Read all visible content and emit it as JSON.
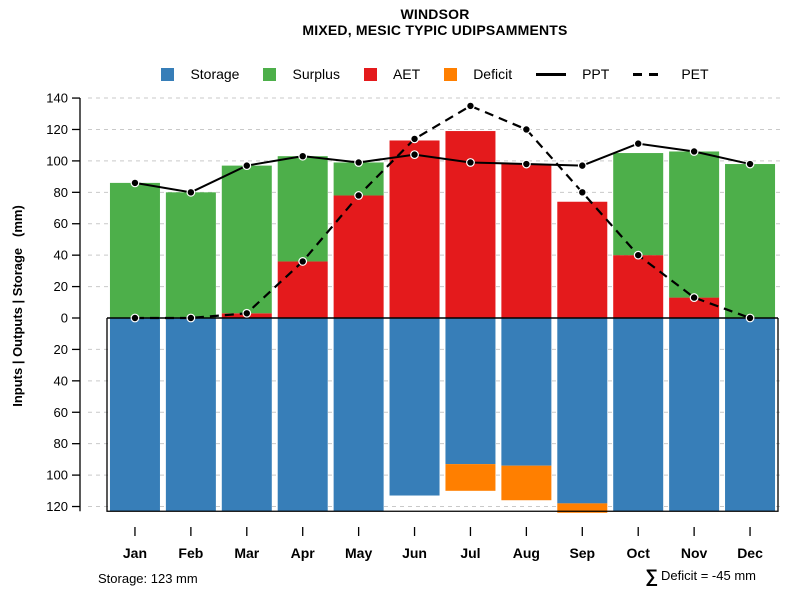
{
  "header": {
    "title": "WINDSOR",
    "subtitle": "MIXED, MESIC TYPIC UDIPSAMMENTS"
  },
  "legend": {
    "items": [
      {
        "label": "Storage",
        "swatch": "square",
        "color": "#377EB8"
      },
      {
        "label": "Surplus",
        "swatch": "square",
        "color": "#4DAF4A"
      },
      {
        "label": "AET",
        "swatch": "square",
        "color": "#E41A1C"
      },
      {
        "label": "Deficit",
        "swatch": "square",
        "color": "#FF7F00"
      },
      {
        "label": "PPT",
        "swatch": "solid-line",
        "color": "#000000"
      },
      {
        "label": "PET",
        "swatch": "dashed-line",
        "color": "#000000"
      }
    ]
  },
  "chart_data": {
    "type": "bar+line",
    "title": "WINDSOR",
    "subtitle": "MIXED, MESIC TYPIC UDIPSAMMENTS",
    "ylabel": "Inputs | Outputs | Storage   (mm)",
    "categories": [
      "Jan",
      "Feb",
      "Mar",
      "Apr",
      "May",
      "Jun",
      "Jul",
      "Aug",
      "Sep",
      "Oct",
      "Nov",
      "Dec"
    ],
    "y_axis": {
      "upper_ticks": [
        0,
        20,
        40,
        60,
        80,
        100,
        120,
        140
      ],
      "lower_ticks": [
        20,
        40,
        60,
        80,
        100,
        120
      ],
      "upper_max": 140,
      "lower_max": 123,
      "grid": "dashed",
      "grid_color": "#c9c9c9"
    },
    "series": [
      {
        "name": "AET",
        "type": "bar",
        "direction": "up",
        "stack": 0,
        "color": "#E41A1C",
        "values": [
          0,
          0,
          3,
          36,
          78,
          113,
          119,
          98,
          74,
          40,
          13,
          0
        ]
      },
      {
        "name": "Surplus",
        "type": "bar",
        "direction": "up",
        "stack": 1,
        "color": "#4DAF4A",
        "values": [
          86,
          80,
          94,
          67,
          21,
          0,
          0,
          0,
          0,
          65,
          93,
          98
        ]
      },
      {
        "name": "Storage",
        "type": "bar",
        "direction": "down",
        "stack": 0,
        "color": "#377EB8",
        "values": [
          123,
          123,
          123,
          123,
          123,
          113,
          93,
          94,
          118,
          123,
          123,
          123
        ]
      },
      {
        "name": "Deficit",
        "type": "bar",
        "direction": "down",
        "stack": 1,
        "color": "#FF7F00",
        "values": [
          0,
          0,
          0,
          0,
          0,
          0,
          17,
          22,
          6,
          0,
          0,
          0
        ]
      },
      {
        "name": "PPT",
        "type": "line",
        "style": "solid",
        "marker": "circle",
        "color": "#000000",
        "values": [
          86,
          80,
          97,
          103,
          99,
          104,
          99,
          98,
          97,
          111,
          106,
          98
        ]
      },
      {
        "name": "PET",
        "type": "line",
        "style": "dashed",
        "marker": "circle",
        "color": "#000000",
        "values": [
          0,
          0,
          3,
          36,
          78,
          114,
          135,
          120,
          80,
          40,
          13,
          0
        ]
      }
    ],
    "legend_position": "top",
    "annotations": {
      "storage_total": "Storage: 123 mm",
      "deficit_total": "∑ Deficit = -45 mm"
    }
  },
  "footer": {
    "left": "Storage: 123 mm",
    "right_sigma": "∑",
    "right_text": "Deficit = -45 mm"
  }
}
